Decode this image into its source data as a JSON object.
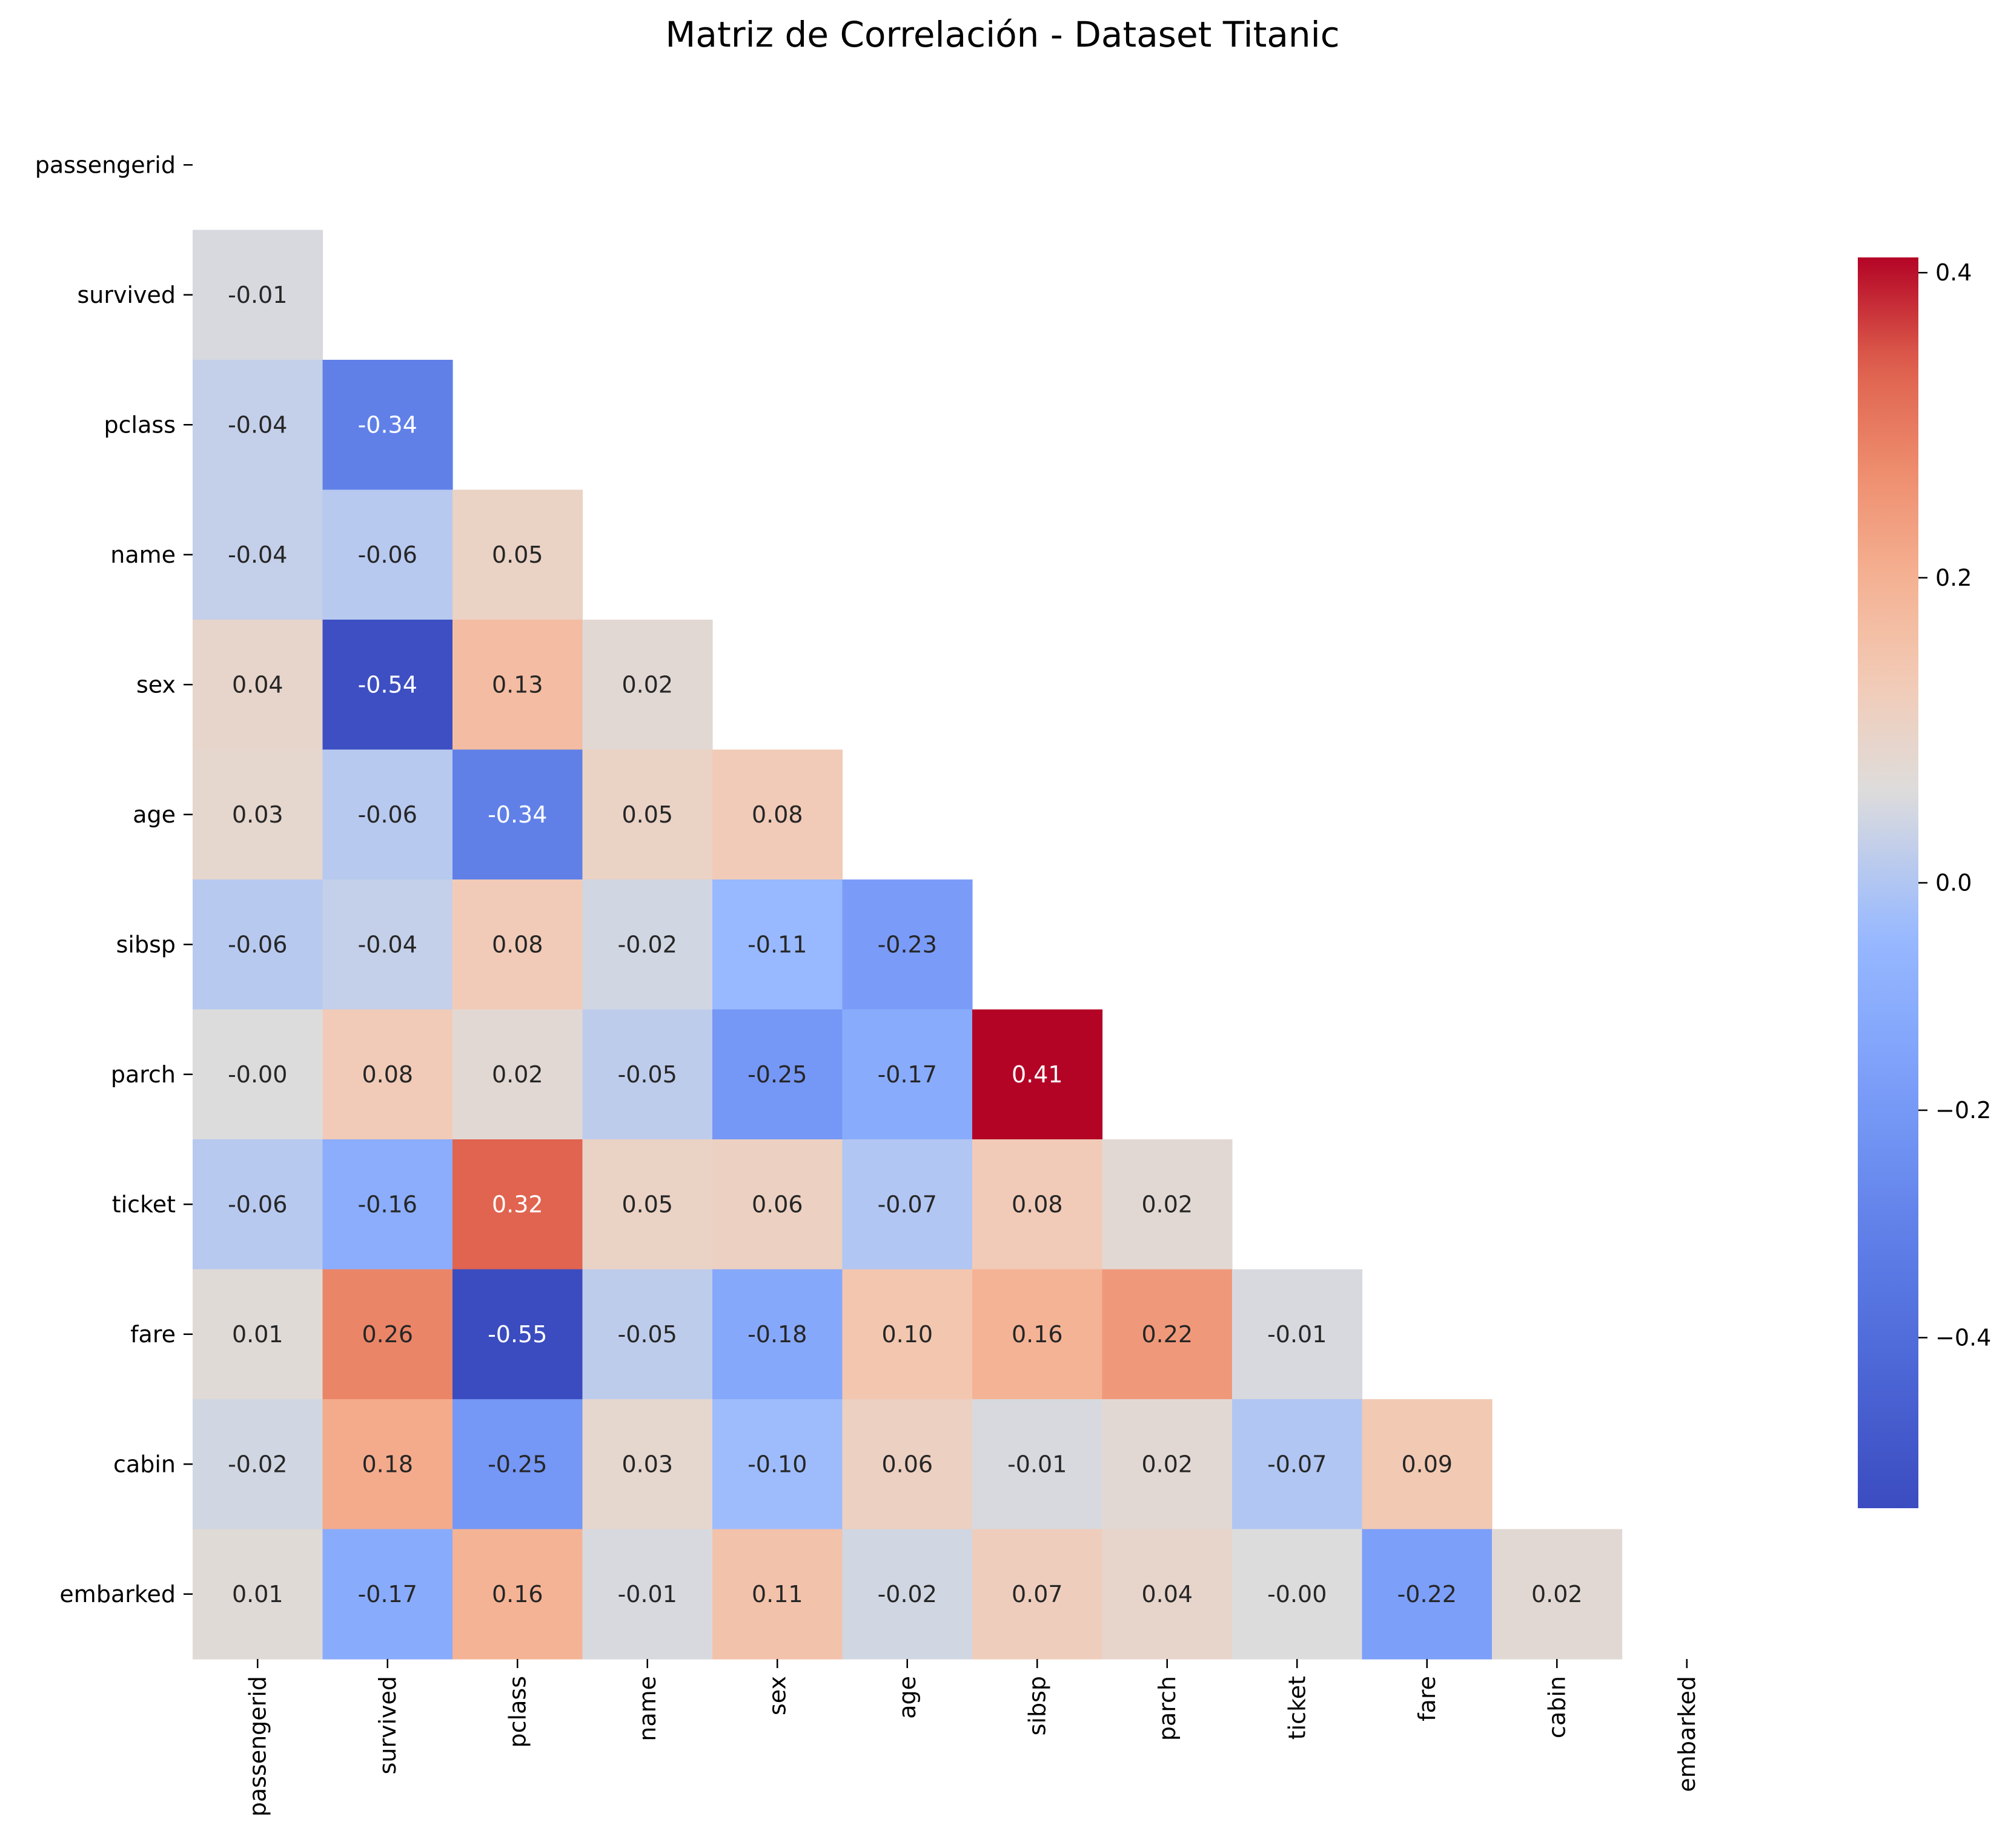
{
  "chart_data": {
    "type": "heatmap",
    "title": "Matriz de Correlación - Dataset Titanic",
    "xlabel": "",
    "ylabel": "",
    "variables": [
      "passengerid",
      "survived",
      "pclass",
      "name",
      "sex",
      "age",
      "sibsp",
      "parch",
      "ticket",
      "fare",
      "cabin",
      "embarked"
    ],
    "mask": "upper-triangle-including-diagonal",
    "colormap": "coolwarm",
    "color_range": [
      -0.55,
      0.41
    ],
    "colorbar_ticks": [
      "0.4",
      "0.2",
      "0.0",
      "−0.2",
      "−0.4"
    ],
    "colorbar_tick_values": [
      0.4,
      0.2,
      0.0,
      -0.2,
      -0.4
    ],
    "rows": [
      {
        "name": "survived",
        "values": [
          -0.01
        ]
      },
      {
        "name": "pclass",
        "values": [
          -0.04,
          -0.34
        ]
      },
      {
        "name": "name",
        "values": [
          -0.04,
          -0.06,
          0.05
        ]
      },
      {
        "name": "sex",
        "values": [
          0.04,
          -0.54,
          0.13,
          0.02
        ]
      },
      {
        "name": "age",
        "values": [
          0.03,
          -0.06,
          -0.34,
          0.05,
          0.08
        ]
      },
      {
        "name": "sibsp",
        "values": [
          -0.06,
          -0.04,
          0.08,
          -0.02,
          -0.11,
          -0.23
        ]
      },
      {
        "name": "parch",
        "values": [
          -0.0,
          0.08,
          0.02,
          -0.05,
          -0.25,
          -0.17,
          0.41
        ]
      },
      {
        "name": "ticket",
        "values": [
          -0.06,
          -0.16,
          0.32,
          0.05,
          0.06,
          -0.07,
          0.08,
          0.02
        ]
      },
      {
        "name": "fare",
        "values": [
          0.01,
          0.26,
          -0.55,
          -0.05,
          -0.18,
          0.1,
          0.16,
          0.22,
          -0.01
        ]
      },
      {
        "name": "cabin",
        "values": [
          -0.02,
          0.18,
          -0.25,
          0.03,
          -0.1,
          0.06,
          -0.01,
          0.02,
          -0.07,
          0.09
        ]
      },
      {
        "name": "embarked",
        "values": [
          0.01,
          -0.17,
          0.16,
          -0.01,
          0.11,
          -0.02,
          0.07,
          0.04,
          -0.0,
          -0.22,
          0.02
        ]
      }
    ]
  }
}
